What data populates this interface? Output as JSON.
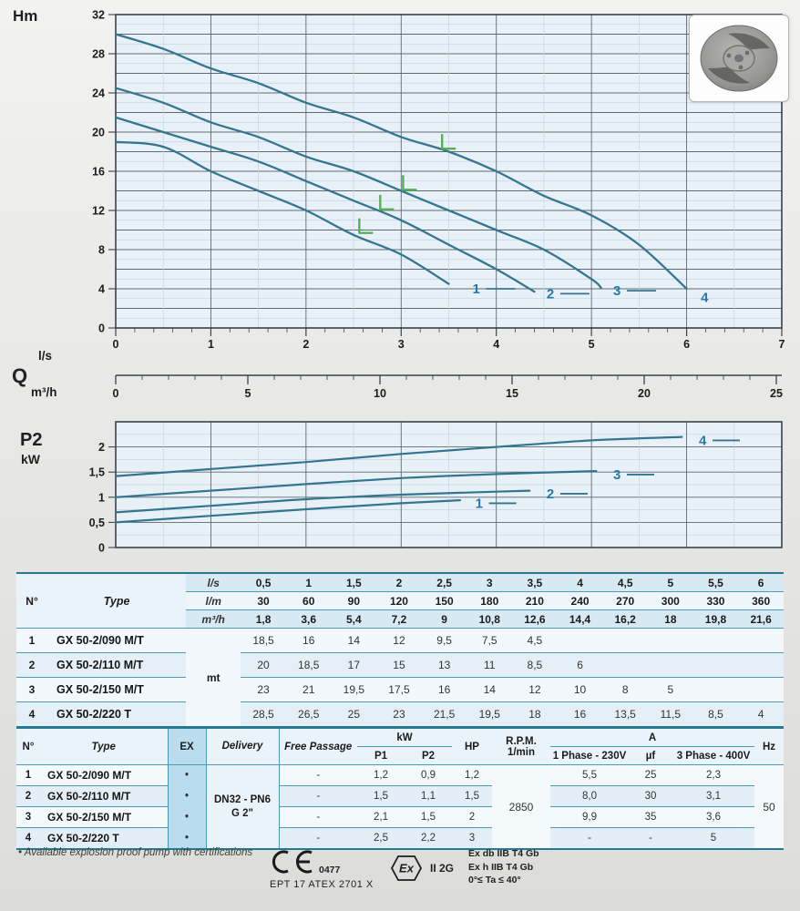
{
  "labels": {
    "head_y": "Hm",
    "flow": "Q",
    "flow_unit_top": "l/s",
    "flow_unit_bottom": "m³/h",
    "power_y": "P2",
    "power_unit": "kW"
  },
  "colors": {
    "curve": "#34758f",
    "curve_label": "#2779ad",
    "bep": "#55b055",
    "grid_major": "#5d6a72",
    "grid_minor": "#c2d5e2",
    "plot_bg": "#e9f1f8",
    "axis": "#3a434a",
    "table_line": "#4d9ab2",
    "table_heavy": "#27798f"
  },
  "chart_data": [
    {
      "type": "line",
      "id": "head_curves",
      "title": "Pump head curves H(Q)",
      "ylabel": "Hm",
      "xlabel": "Q (l/s)",
      "xlim": [
        0,
        7
      ],
      "ylim": [
        0,
        32
      ],
      "grid": true,
      "ytick_values": [
        0,
        4,
        8,
        12,
        16,
        20,
        24,
        28,
        32
      ],
      "ytick_labels": [
        "0",
        "4",
        "8",
        "12",
        "16",
        "20",
        "24",
        "28",
        "32"
      ],
      "xtick_values": [
        0,
        1,
        2,
        3,
        4,
        5,
        6,
        7
      ],
      "xtick_labels": [
        "0",
        "1",
        "2",
        "3",
        "4",
        "5",
        "6",
        "7"
      ],
      "series": [
        {
          "name": "1",
          "points": [
            [
              0,
              19
            ],
            [
              0.5,
              18.5
            ],
            [
              1,
              16
            ],
            [
              1.5,
              14
            ],
            [
              2,
              12
            ],
            [
              2.5,
              9.5
            ],
            [
              3,
              7.5
            ],
            [
              3.5,
              4.5
            ]
          ],
          "label_at": [
            3.72,
            4.0
          ],
          "trail_dash": true
        },
        {
          "name": "2",
          "points": [
            [
              0,
              21.5
            ],
            [
              0.5,
              20
            ],
            [
              1,
              18.5
            ],
            [
              1.5,
              17
            ],
            [
              2,
              15
            ],
            [
              2.5,
              13
            ],
            [
              3,
              11
            ],
            [
              3.5,
              8.5
            ],
            [
              4,
              6
            ],
            [
              4.4,
              3.7
            ]
          ],
          "label_at": [
            4.5,
            3.5
          ],
          "trail_dash": true
        },
        {
          "name": "3",
          "points": [
            [
              0,
              24.5
            ],
            [
              0.5,
              23
            ],
            [
              1,
              21
            ],
            [
              1.5,
              19.5
            ],
            [
              2,
              17.5
            ],
            [
              2.5,
              16
            ],
            [
              3,
              14
            ],
            [
              3.5,
              12
            ],
            [
              4,
              10
            ],
            [
              4.5,
              8
            ],
            [
              5,
              5
            ],
            [
              5.1,
              4.1
            ]
          ],
          "label_at": [
            5.2,
            3.8
          ],
          "trail_dash": true
        },
        {
          "name": "4",
          "points": [
            [
              0,
              30
            ],
            [
              0.5,
              28.5
            ],
            [
              1,
              26.5
            ],
            [
              1.5,
              25
            ],
            [
              2,
              23
            ],
            [
              2.5,
              21.5
            ],
            [
              3,
              19.5
            ],
            [
              3.5,
              18
            ],
            [
              4,
              16
            ],
            [
              4.5,
              13.5
            ],
            [
              5,
              11.5
            ],
            [
              5.5,
              8.5
            ],
            [
              6,
              4
            ]
          ],
          "label_at": [
            6.12,
            3.1
          ],
          "trail_dash": false
        }
      ],
      "bep_markers": [
        [
          2.56,
          9.8
        ],
        [
          2.78,
          12.2
        ],
        [
          3.02,
          14.2
        ],
        [
          3.43,
          18.4
        ]
      ]
    },
    {
      "type": "line",
      "id": "flow_axis_m3h",
      "title": "Secondary flow axis (m³/h)",
      "xlim": [
        0,
        25.2
      ],
      "xtick_values": [
        0,
        5,
        10,
        15,
        20,
        25
      ],
      "xtick_labels": [
        "0",
        "5",
        "10",
        "15",
        "20",
        "25"
      ]
    },
    {
      "type": "line",
      "id": "power_curves",
      "title": "Absorbed power curves P2(Q)",
      "ylabel": "P2 kW",
      "xlim": [
        0,
        7
      ],
      "ylim": [
        0,
        2.5
      ],
      "grid": true,
      "ytick_values": [
        0,
        0.5,
        1,
        1.5,
        2
      ],
      "ytick_labels": [
        "0",
        "0,5",
        "1",
        "1,5",
        "2"
      ],
      "series": [
        {
          "name": "1",
          "points": [
            [
              0,
              0.5
            ],
            [
              1,
              0.63
            ],
            [
              2,
              0.76
            ],
            [
              3,
              0.88
            ],
            [
              3.62,
              0.94
            ]
          ],
          "label_at": [
            3.75,
            0.88
          ],
          "trail_dash": true
        },
        {
          "name": "2",
          "points": [
            [
              0,
              0.7
            ],
            [
              1,
              0.83
            ],
            [
              2,
              0.96
            ],
            [
              3,
              1.05
            ],
            [
              4,
              1.11
            ],
            [
              4.35,
              1.13
            ]
          ],
          "label_at": [
            4.5,
            1.07
          ],
          "trail_dash": true
        },
        {
          "name": "3",
          "points": [
            [
              0,
              1.0
            ],
            [
              1,
              1.13
            ],
            [
              2,
              1.26
            ],
            [
              3,
              1.38
            ],
            [
              4,
              1.46
            ],
            [
              5.05,
              1.52
            ]
          ],
          "label_at": [
            5.2,
            1.45
          ],
          "trail_dash": true
        },
        {
          "name": "4",
          "points": [
            [
              0,
              1.42
            ],
            [
              1,
              1.56
            ],
            [
              2,
              1.7
            ],
            [
              3,
              1.86
            ],
            [
              4,
              2.0
            ],
            [
              5,
              2.13
            ],
            [
              5.95,
              2.2
            ]
          ],
          "label_at": [
            6.1,
            2.13
          ],
          "trail_dash": true
        }
      ]
    }
  ],
  "table_hydraulic": {
    "col_n": "N°",
    "col_type": "Type",
    "unit_label": "mt",
    "unit_rows": [
      {
        "label": "l/s",
        "values": [
          "0,5",
          "1",
          "1,5",
          "2",
          "2,5",
          "3",
          "3,5",
          "4",
          "4,5",
          "5",
          "5,5",
          "6"
        ]
      },
      {
        "label": "l/m",
        "values": [
          "30",
          "60",
          "90",
          "120",
          "150",
          "180",
          "210",
          "240",
          "270",
          "300",
          "330",
          "360"
        ]
      },
      {
        "label": "m³/h",
        "values": [
          "1,8",
          "3,6",
          "5,4",
          "7,2",
          "9",
          "10,8",
          "12,6",
          "14,4",
          "16,2",
          "18",
          "19,8",
          "21,6"
        ]
      }
    ],
    "rows": [
      {
        "n": "1",
        "type": "GX 50-2/090 M/T",
        "values": [
          "18,5",
          "16",
          "14",
          "12",
          "9,5",
          "7,5",
          "4,5",
          "",
          "",
          "",
          "",
          ""
        ]
      },
      {
        "n": "2",
        "type": "GX 50-2/110 M/T",
        "values": [
          "20",
          "18,5",
          "17",
          "15",
          "13",
          "11",
          "8,5",
          "6",
          "",
          "",
          "",
          ""
        ]
      },
      {
        "n": "3",
        "type": "GX 50-2/150 M/T",
        "values": [
          "23",
          "21",
          "19,5",
          "17,5",
          "16",
          "14",
          "12",
          "10",
          "8",
          "5",
          "",
          ""
        ]
      },
      {
        "n": "4",
        "type": "GX 50-2/220 T",
        "values": [
          "28,5",
          "26,5",
          "25",
          "23",
          "21,5",
          "19,5",
          "18",
          "16",
          "13,5",
          "11,5",
          "8,5",
          "4"
        ]
      }
    ]
  },
  "table_electric": {
    "h_n": "N°",
    "h_type": "Type",
    "h_ex": "EX",
    "h_delivery": "Delivery",
    "h_free_passage": "Free Passage",
    "h_kw": "kW",
    "h_p1": "P1",
    "h_p2": "P2",
    "h_hp": "HP",
    "h_rpm1": "R.P.M.",
    "h_rpm2": "1/min",
    "h_a": "A",
    "h_ph1": "1 Phase - 230V",
    "h_uf": "µf",
    "h_ph3": "3 Phase - 400V",
    "h_hz": "Hz",
    "delivery_line1": "DN32 - PN6",
    "delivery_line2": "G 2\"",
    "rpm": "2850",
    "hz": "50",
    "rows": [
      {
        "n": "1",
        "type": "GX 50-2/090 M/T",
        "ex": "•",
        "fp": "-",
        "p1": "1,2",
        "p2": "0,9",
        "hp": "1,2",
        "ph1": "5,5",
        "uf": "25",
        "ph3": "2,3"
      },
      {
        "n": "2",
        "type": "GX 50-2/110 M/T",
        "ex": "•",
        "fp": "-",
        "p1": "1,5",
        "p2": "1,1",
        "hp": "1,5",
        "ph1": "8,0",
        "uf": "30",
        "ph3": "3,1"
      },
      {
        "n": "3",
        "type": "GX 50-2/150 M/T",
        "ex": "•",
        "fp": "-",
        "p1": "2,1",
        "p2": "1,5",
        "hp": "2",
        "ph1": "9,9",
        "uf": "35",
        "ph3": "3,6"
      },
      {
        "n": "4",
        "type": "GX 50-2/220 T",
        "ex": "•",
        "fp": "-",
        "p1": "2,5",
        "p2": "2,2",
        "hp": "3",
        "ph1": "-",
        "uf": "-",
        "ph3": "5"
      }
    ]
  },
  "footer": {
    "note": "• Available explosion proof pump with certifications",
    "ce_label": "CE",
    "ce_number": "0477",
    "atex_code": "EPT 17 ATEX 2701 X",
    "ex_symbol": "Ex",
    "ex_group": "II 2G",
    "cert_lines": [
      "Ex db IIB T4 Gb",
      "Ex h IIB T4 Gb",
      "0°≤ Ta ≤ 40°"
    ]
  }
}
